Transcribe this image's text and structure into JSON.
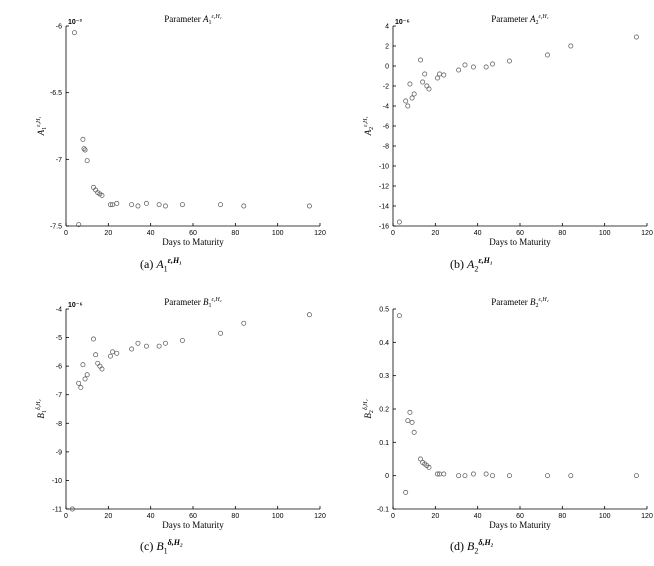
{
  "chart_data": [
    {
      "type": "scatter",
      "id": "a",
      "title": "Parameter A₁^{ε,H₁}",
      "title_main": "Parameter ",
      "title_sym": "A",
      "title_sub": "1",
      "title_sup": "ε,H₁",
      "ylabel_sym": "A",
      "ylabel_sub": "1",
      "ylabel_sup": "ε,H₁",
      "xlabel": "Days to Maturity",
      "exponent": "10⁻³",
      "xlim": [
        0,
        120
      ],
      "ylim": [
        -7.5,
        -6
      ],
      "xticks": [
        0,
        20,
        40,
        60,
        80,
        100,
        120
      ],
      "yticks": [
        -7.5,
        -7,
        -6.5,
        -6
      ],
      "ytick_labels": [
        "-7.5",
        "-7",
        "-6.5",
        "-6"
      ],
      "caption_label": "(a)",
      "caption_sym": "A",
      "caption_sub": "1",
      "caption_sup": "ε,H₁",
      "x": [
        4,
        6,
        8,
        8.5,
        9,
        10,
        13,
        14,
        15,
        16,
        17,
        21,
        22,
        24,
        31,
        34,
        38,
        44,
        47,
        55,
        73,
        84,
        115
      ],
      "y": [
        -6.05,
        -7.49,
        -6.85,
        -6.92,
        -6.93,
        -7.01,
        -7.21,
        -7.23,
        -7.25,
        -7.26,
        -7.27,
        -7.34,
        -7.34,
        -7.33,
        -7.34,
        -7.35,
        -7.33,
        -7.34,
        -7.35,
        -7.34,
        -7.34,
        -7.35,
        -7.35
      ]
    },
    {
      "type": "scatter",
      "id": "b",
      "title": "Parameter A₂^{ε,H₁}",
      "title_main": "Parameter ",
      "title_sym": "A",
      "title_sub": "2",
      "title_sup": "ε,H₁",
      "ylabel_sym": "A",
      "ylabel_sub": "2",
      "ylabel_sup": "ε,H₁",
      "xlabel": "Days to Maturity",
      "exponent": "10⁻⁶",
      "xlim": [
        0,
        120
      ],
      "ylim": [
        -16,
        4
      ],
      "xticks": [
        0,
        20,
        40,
        60,
        80,
        100,
        120
      ],
      "yticks": [
        -16,
        -14,
        -12,
        -10,
        -8,
        -6,
        -4,
        -2,
        0,
        2,
        4
      ],
      "ytick_labels": [
        "-16",
        "-14",
        "-12",
        "-10",
        "-8",
        "-6",
        "-4",
        "-2",
        "0",
        "2",
        "4"
      ],
      "caption_label": "(b)",
      "caption_sym": "A",
      "caption_sub": "2",
      "caption_sup": "ε,H₁",
      "x": [
        3,
        6,
        7,
        8,
        9,
        10,
        13,
        14,
        15,
        16,
        17,
        21,
        22,
        24,
        31,
        34,
        38,
        44,
        47,
        55,
        73,
        84,
        115
      ],
      "y": [
        -15.6,
        -3.5,
        -4.0,
        -1.8,
        -3.2,
        -2.8,
        0.6,
        -1.6,
        -0.8,
        -2.0,
        -2.3,
        -1.2,
        -0.8,
        -0.9,
        -0.4,
        0.1,
        -0.1,
        -0.1,
        0.2,
        0.5,
        1.1,
        2.0,
        2.9
      ]
    },
    {
      "type": "scatter",
      "id": "c",
      "title": "Parameter B₁^{ε,H₂}",
      "title_main": "Parameter ",
      "title_sym": "B",
      "title_sub": "1",
      "title_sup": "ε,H₂",
      "ylabel_sym": "B",
      "ylabel_sub": "1",
      "ylabel_sup": "δ,H₂",
      "xlabel": "Days to Maturity",
      "exponent": "10⁻⁶",
      "xlim": [
        0,
        120
      ],
      "ylim": [
        -11,
        -4
      ],
      "xticks": [
        0,
        20,
        40,
        60,
        80,
        100,
        120
      ],
      "yticks": [
        -11,
        -10,
        -9,
        -8,
        -7,
        -6,
        -5,
        -4
      ],
      "ytick_labels": [
        "-11",
        "-10",
        "-9",
        "-8",
        "-7",
        "-6",
        "-5",
        "-4"
      ],
      "caption_label": "(c)",
      "caption_sym": "B",
      "caption_sub": "1",
      "caption_sup": "δ,H₂",
      "x": [
        3,
        6,
        7,
        8,
        9,
        10,
        13,
        14,
        15,
        16,
        17,
        21,
        22,
        24,
        31,
        34,
        38,
        44,
        47,
        55,
        73,
        84,
        115
      ],
      "y": [
        -11.0,
        -6.6,
        -6.75,
        -5.95,
        -6.45,
        -6.3,
        -5.05,
        -5.6,
        -5.9,
        -6.0,
        -6.1,
        -5.65,
        -5.5,
        -5.55,
        -5.4,
        -5.2,
        -5.3,
        -5.3,
        -5.2,
        -5.1,
        -4.85,
        -4.5,
        -4.2
      ]
    },
    {
      "type": "scatter",
      "id": "d",
      "title": "Parameter B₂^{ε,H₂}",
      "title_main": "Parameter ",
      "title_sym": "B",
      "title_sub": "2",
      "title_sup": "ε,H₂",
      "ylabel_sym": "B",
      "ylabel_sub": "2",
      "ylabel_sup": "δ,H₂",
      "xlabel": "Days to Maturity",
      "exponent": "",
      "xlim": [
        0,
        120
      ],
      "ylim": [
        -0.1,
        0.5
      ],
      "xticks": [
        0,
        20,
        40,
        60,
        80,
        100,
        120
      ],
      "yticks": [
        -0.1,
        0,
        0.1,
        0.2,
        0.3,
        0.4,
        0.5
      ],
      "ytick_labels": [
        "-0.1",
        "0",
        "0.1",
        "0.2",
        "0.3",
        "0.4",
        "0.5"
      ],
      "caption_label": "(d)",
      "caption_sym": "B",
      "caption_sub": "2",
      "caption_sup": "δ,H₂",
      "x": [
        3,
        6,
        7,
        8,
        9,
        10,
        13,
        14,
        15,
        16,
        17,
        21,
        22,
        24,
        31,
        34,
        38,
        44,
        47,
        55,
        73,
        84,
        115
      ],
      "y": [
        0.48,
        -0.05,
        0.165,
        0.19,
        0.16,
        0.13,
        0.05,
        0.04,
        0.035,
        0.03,
        0.025,
        0.005,
        0.005,
        0.005,
        0.0,
        0.0,
        0.005,
        0.005,
        0.0,
        0.0,
        0.0,
        0.0,
        0.0
      ]
    }
  ]
}
